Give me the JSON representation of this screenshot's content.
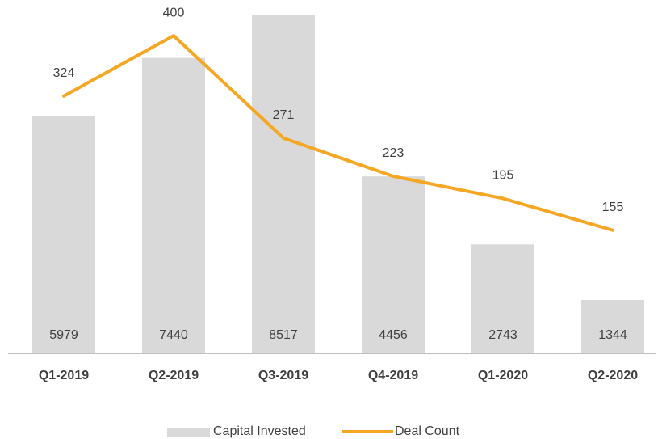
{
  "chart_data": {
    "type": "combo",
    "categories": [
      "Q1-2019",
      "Q2-2019",
      "Q3-2019",
      "Q4-2019",
      "Q1-2020",
      "Q2-2020"
    ],
    "ylim": [
      0,
      9000
    ],
    "y2lim": [
      0,
      450
    ],
    "series": [
      {
        "name": "Capital Invested",
        "type": "bar",
        "color": "#d9d9d9",
        "values": [
          5979,
          7440,
          8517,
          4456,
          2743,
          1344
        ]
      },
      {
        "name": "Deal Count",
        "type": "line",
        "axis": "y2",
        "color": "#f5a623",
        "values": [
          324,
          400,
          271,
          223,
          195,
          155
        ]
      }
    ]
  }
}
